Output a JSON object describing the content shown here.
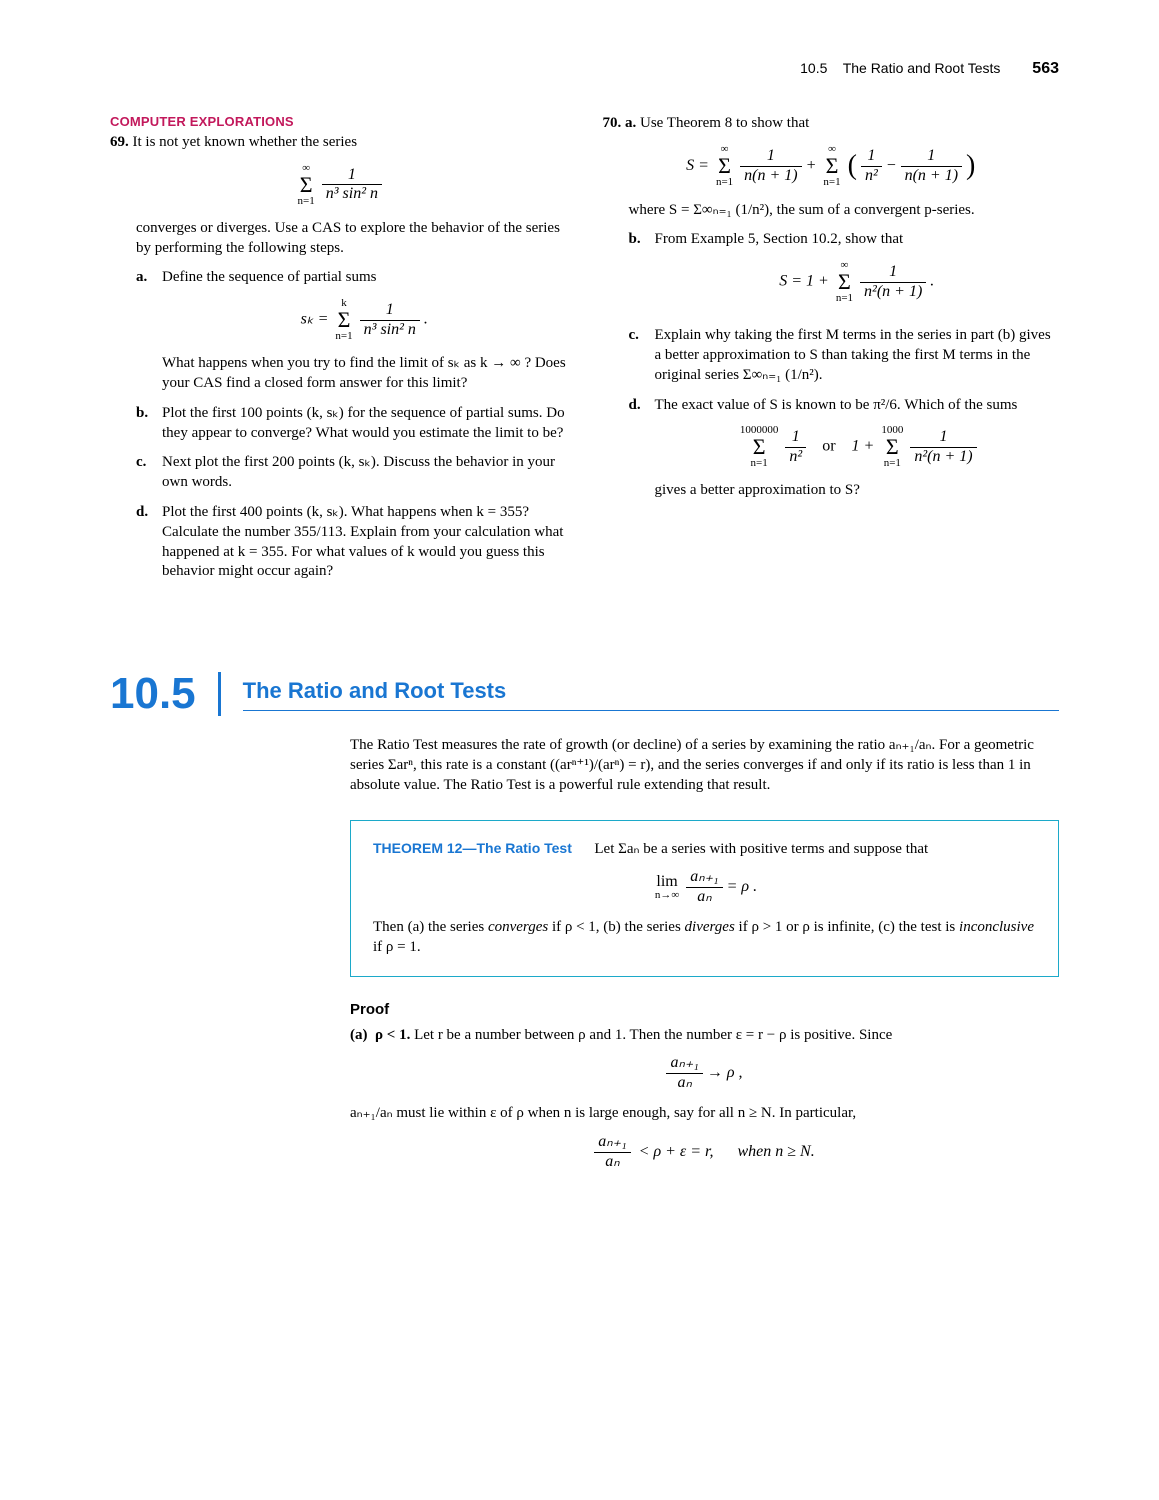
{
  "runningHead": {
    "section": "10.5",
    "title": "The Ratio and Root Tests",
    "page": "563"
  },
  "left": {
    "label": "COMPUTER EXPLORATIONS",
    "ex69": {
      "num": "69.",
      "intro": "It is not yet known whether the series",
      "series_top": "∞",
      "series_bot": "n=1",
      "series_frac_num": "1",
      "series_frac_den": "n³ sin² n",
      "after": "converges or diverges. Use a CAS to explore the behavior of the series by performing the following steps.",
      "a_letter": "a.",
      "a_text": "Define the sequence of partial sums",
      "a_eq_lhs": "sₖ =",
      "a_eq_top": "k",
      "a_eq_bot": "n=1",
      "a_eq_frac_num": "1",
      "a_eq_frac_den": "n³ sin² n",
      "a_after": "What happens when you try to find the limit of sₖ as k → ∞ ? Does your CAS find a closed form answer for this limit?",
      "b_letter": "b.",
      "b_text": "Plot the first 100 points (k, sₖ) for the sequence of partial sums. Do they appear to converge? What would you estimate the limit to be?",
      "c_letter": "c.",
      "c_text": "Next plot the first 200 points (k, sₖ). Discuss the behavior in your own words.",
      "d_letter": "d.",
      "d_text": "Plot the first 400 points (k, sₖ). What happens when k = 355? Calculate the number 355/113. Explain from your calculation what happened at k = 355. For what values of k would you guess this behavior might occur again?"
    }
  },
  "right": {
    "ex70": {
      "num": "70.",
      "a_letter": "a.",
      "a_text": "Use Theorem 8 to show that",
      "eq1_lhs": "S =",
      "eq1_top": "∞",
      "eq1_bot": "n=1",
      "eq1_frac1_num": "1",
      "eq1_frac1_den": "n(n + 1)",
      "eq1_plus": " + ",
      "eq1_frac2a_num": "1",
      "eq1_frac2a_den": "n²",
      "eq1_minus": " − ",
      "eq1_frac2b_num": "1",
      "eq1_frac2b_den": "n(n + 1)",
      "a_after": "where S = Σ∞ₙ₌₁ (1/n²), the sum of a convergent p-series.",
      "b_letter": "b.",
      "b_text": "From Example 5, Section 10.2, show that",
      "eq2_lhs": "S = 1 + ",
      "eq2_top": "∞",
      "eq2_bot": "n=1",
      "eq2_frac_num": "1",
      "eq2_frac_den": "n²(n + 1)",
      "c_letter": "c.",
      "c_text": "Explain why taking the first M terms in the series in part (b) gives a better approximation to S than taking the first M terms in the original series Σ∞ₙ₌₁ (1/n²).",
      "d_letter": "d.",
      "d_text": "The exact value of S is known to be π²/6. Which of the sums",
      "eq3_top1": "1000000",
      "eq3_bot1": "n=1",
      "eq3_frac1_num": "1",
      "eq3_frac1_den": "n²",
      "eq3_or": "   or   ",
      "eq3_lhs2": "1 + ",
      "eq3_top2": "1000",
      "eq3_bot2": "n=1",
      "eq3_frac2_num": "1",
      "eq3_frac2_den": "n²(n + 1)",
      "d_after": "gives a better approximation to S?"
    }
  },
  "section": {
    "number": "10.5",
    "title": "The Ratio and Root Tests",
    "intro": "The Ratio Test measures the rate of growth (or decline) of a series by examining the ratio aₙ₊₁/aₙ. For a geometric series Σarⁿ, this rate is a constant ((arⁿ⁺¹)/(arⁿ) = r), and the series converges if and only if its ratio is less than 1 in absolute value. The Ratio Test is a powerful rule extending that result.",
    "theorem_label": "THEOREM 12—The Ratio Test",
    "theorem_intro": "Let Σaₙ be a series with positive terms and suppose that",
    "theorem_eq_lim": "lim",
    "theorem_eq_sub": "n→∞",
    "theorem_eq_frac_num": "aₙ₊₁",
    "theorem_eq_frac_den": "aₙ",
    "theorem_eq_rhs": " = ρ .",
    "theorem_then_a": "Then (a) the series ",
    "theorem_conv": "converges",
    "theorem_then_b": " if ρ < 1, (b) the series ",
    "theorem_div": "diverges",
    "theorem_then_c": " if ρ > 1 or ρ is infinite, (c) the test is ",
    "theorem_inc": "inconclusive",
    "theorem_then_d": " if ρ = 1.",
    "proof_label": "Proof",
    "proof_a_letter": "(a)",
    "proof_a_cond": "ρ < 1.",
    "proof_a_text": " Let r be a number between ρ and 1. Then the number ε = r − ρ is positive. Since",
    "proof_eq1_num": "aₙ₊₁",
    "proof_eq1_den": "aₙ",
    "proof_eq1_rhs": " → ρ ,",
    "proof_a_text2": "aₙ₊₁/aₙ must lie within ε of ρ when n is large enough, say for all n ≥ N. In particular,",
    "proof_eq2_num": "aₙ₊₁",
    "proof_eq2_den": "aₙ",
    "proof_eq2_rhs": " < ρ + ε = r,      when n ≥ N."
  }
}
